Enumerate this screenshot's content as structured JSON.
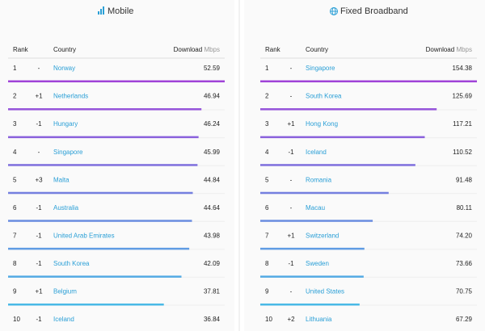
{
  "panels": [
    {
      "title": "Mobile",
      "columns": {
        "rank": "Rank",
        "country": "Country",
        "download": "Download",
        "unit": "Mbps"
      },
      "rows": [
        [
          "1",
          "-",
          "Norway",
          "52.59"
        ],
        [
          "2",
          "+1",
          "Netherlands",
          "46.94"
        ],
        [
          "3",
          "-1",
          "Hungary",
          "46.24"
        ],
        [
          "4",
          "-",
          "Singapore",
          "45.99"
        ],
        [
          "5",
          "+3",
          "Malta",
          "44.84"
        ],
        [
          "6",
          "-1",
          "Australia",
          "44.64"
        ],
        [
          "7",
          "-1",
          "United Arab Emirates",
          "43.98"
        ],
        [
          "8",
          "-1",
          "South Korea",
          "42.09"
        ],
        [
          "9",
          "+1",
          "Belgium",
          "37.81"
        ],
        [
          "10",
          "-1",
          "Iceland",
          "36.84"
        ]
      ]
    },
    {
      "title": "Fixed Broadband",
      "columns": {
        "rank": "Rank",
        "country": "Country",
        "download": "Download",
        "unit": "Mbps"
      },
      "rows": [
        [
          "1",
          "-",
          "Singapore",
          "154.38"
        ],
        [
          "2",
          "-",
          "South Korea",
          "125.69"
        ],
        [
          "3",
          "+1",
          "Hong Kong",
          "117.21"
        ],
        [
          "4",
          "-1",
          "Iceland",
          "110.52"
        ],
        [
          "5",
          "-",
          "Romania",
          "91.48"
        ],
        [
          "6",
          "-",
          "Macau",
          "80.11"
        ],
        [
          "7",
          "+1",
          "Switzerland",
          "74.20"
        ],
        [
          "8",
          "-1",
          "Sweden",
          "73.66"
        ],
        [
          "9",
          "-",
          "United States",
          "70.75"
        ],
        [
          "10",
          "+2",
          "Lithuania",
          "67.29"
        ]
      ]
    }
  ]
}
